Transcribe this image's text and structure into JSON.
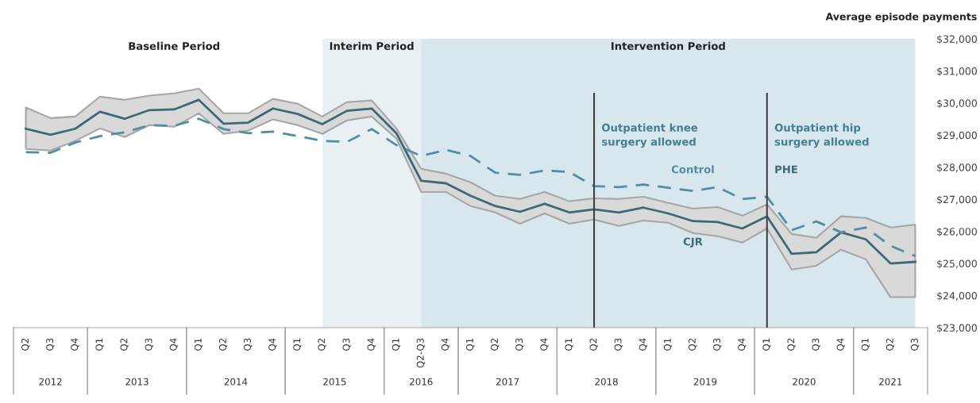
{
  "chart_data": {
    "type": "line",
    "ylabel": "Average episode payments",
    "categories": [
      "Q2",
      "Q3",
      "Q4",
      "Q1",
      "Q2",
      "Q3",
      "Q4",
      "Q1",
      "Q2",
      "Q3",
      "Q4",
      "Q1",
      "Q2",
      "Q3",
      "Q4",
      "Q1",
      "Q2-Q3",
      "Q4",
      "Q1",
      "Q2",
      "Q3",
      "Q4",
      "Q1",
      "Q2",
      "Q3",
      "Q4",
      "Q1",
      "Q2",
      "Q3",
      "Q4",
      "Q1",
      "Q2",
      "Q3",
      "Q4",
      "Q1",
      "Q2",
      "Q3"
    ],
    "series": [
      {
        "color": "#3d6878",
        "line_style": "solid",
        "values": [
          29200,
          29010,
          29200,
          29730,
          29510,
          29780,
          29800,
          30100,
          29360,
          29390,
          29830,
          29660,
          29340,
          29760,
          29830,
          29060,
          27580,
          27500,
          27110,
          26790,
          26610,
          26860,
          26590,
          26690,
          26590,
          26740,
          26560,
          26320,
          26290,
          26090,
          26470,
          25300,
          25350,
          25970,
          25750,
          25000,
          25050
        ],
        "lower": [
          28570,
          28520,
          28820,
          29210,
          28940,
          29310,
          29260,
          29680,
          29040,
          29140,
          29490,
          29310,
          29040,
          29460,
          29580,
          28890,
          27230,
          27230,
          26790,
          26590,
          26240,
          26560,
          26240,
          26370,
          26170,
          26340,
          26270,
          25950,
          25850,
          25650,
          26090,
          24810,
          24930,
          25430,
          25130,
          23950,
          23950
        ],
        "upper": [
          29860,
          29530,
          29580,
          30200,
          30100,
          30230,
          30300,
          30450,
          29680,
          29680,
          30130,
          29980,
          29580,
          30030,
          30080,
          29210,
          27950,
          27800,
          27530,
          27110,
          27010,
          27230,
          26940,
          27030,
          27010,
          27080,
          26890,
          26710,
          26760,
          26490,
          26840,
          25920,
          25800,
          26470,
          26420,
          26120,
          26210
        ]
      },
      {
        "color": "#4f8ea3",
        "line_style": "dashed",
        "values": [
          28470,
          28450,
          28770,
          28970,
          29090,
          29310,
          29290,
          29510,
          29190,
          29060,
          29110,
          28970,
          28820,
          28790,
          29190,
          28690,
          28350,
          28540,
          28350,
          27830,
          27760,
          27900,
          27850,
          27410,
          27380,
          27460,
          27360,
          27260,
          27380,
          27010,
          27080,
          26040,
          26310,
          25970,
          26120,
          25550,
          25230
        ]
      }
    ],
    "ylim": [
      23000,
      32000
    ],
    "yticks": [
      {
        "value": 23000,
        "label": "$23,000"
      },
      {
        "value": 24000,
        "label": "$24,000"
      },
      {
        "value": 25000,
        "label": "$25,000"
      },
      {
        "value": 26000,
        "label": "$26,000"
      },
      {
        "value": 27000,
        "label": "$27,000"
      },
      {
        "value": 28000,
        "label": "$28,000"
      },
      {
        "value": 29000,
        "label": "$29,000"
      },
      {
        "value": 30000,
        "label": "$30,000"
      },
      {
        "value": 31000,
        "label": "$31,000"
      },
      {
        "value": 32000,
        "label": "$32,000"
      }
    ],
    "annotations": [
      "Baseline Period",
      "Control",
      "CJR",
      "PHE",
      "Interim Period",
      "Intervention Period",
      "Outpatient knee\nsurgery allowed",
      "Outpatient hip\nsurgery allowed",
      "2012",
      "2013",
      "2014",
      "2015",
      "2016",
      "2017",
      "2018",
      "2019",
      "2020",
      "2021"
    ],
    "legend": false
  }
}
